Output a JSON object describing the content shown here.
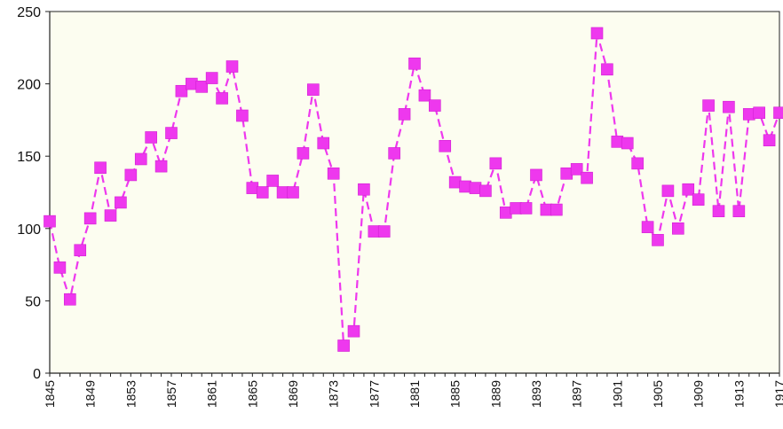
{
  "chart_data": {
    "type": "line",
    "title": "",
    "xlabel": "",
    "ylabel": "",
    "ylim": [
      0,
      250
    ],
    "yticks": [
      "0",
      "50",
      "100",
      "150",
      "200",
      "250"
    ],
    "xlim": [
      1845,
      1917
    ],
    "xticks": [
      "1845",
      "1849",
      "1853",
      "1857",
      "1861",
      "1865",
      "1869",
      "1873",
      "1877",
      "1881",
      "1885",
      "1889",
      "1893",
      "1897",
      "1901",
      "1905",
      "1909",
      "1913",
      "1917"
    ],
    "grid": false,
    "legend": "none",
    "style": {
      "line_color": "#ee38ee",
      "line_dash": "dashed",
      "marker": "square",
      "marker_color": "#ee38ee",
      "plot_background": "#fcfdf0"
    },
    "series": [
      {
        "x": [
          1845,
          1846,
          1847,
          1848,
          1849,
          1850,
          1851,
          1852,
          1853,
          1854,
          1855,
          1856,
          1857,
          1858,
          1859,
          1860,
          1861,
          1862,
          1863,
          1864,
          1865,
          1866,
          1867,
          1868,
          1869,
          1870,
          1871,
          1872,
          1873,
          1874,
          1875,
          1876,
          1877,
          1878,
          1879,
          1880,
          1881,
          1882,
          1883,
          1884,
          1885,
          1886,
          1887,
          1888,
          1889,
          1890,
          1891,
          1892,
          1893,
          1894,
          1895,
          1896,
          1897,
          1898,
          1899,
          1900,
          1901,
          1902,
          1903,
          1904,
          1905,
          1906,
          1907,
          1908,
          1909,
          1910,
          1911,
          1912,
          1913,
          1914,
          1915,
          1916,
          1917
        ],
        "y": [
          105,
          73,
          51,
          85,
          107,
          142,
          109,
          118,
          137,
          148,
          163,
          143,
          166,
          195,
          200,
          198,
          204,
          190,
          212,
          178,
          128,
          125,
          133,
          125,
          125,
          152,
          196,
          159,
          138,
          19,
          29,
          127,
          98,
          98,
          152,
          179,
          214,
          192,
          185,
          157,
          132,
          129,
          128,
          126,
          145,
          111,
          114,
          114,
          137,
          113,
          113,
          138,
          141,
          135,
          235,
          210,
          160,
          159,
          145,
          101,
          92,
          126,
          100,
          127,
          120,
          185,
          112,
          184,
          112,
          179,
          180,
          161,
          180
        ]
      }
    ]
  }
}
